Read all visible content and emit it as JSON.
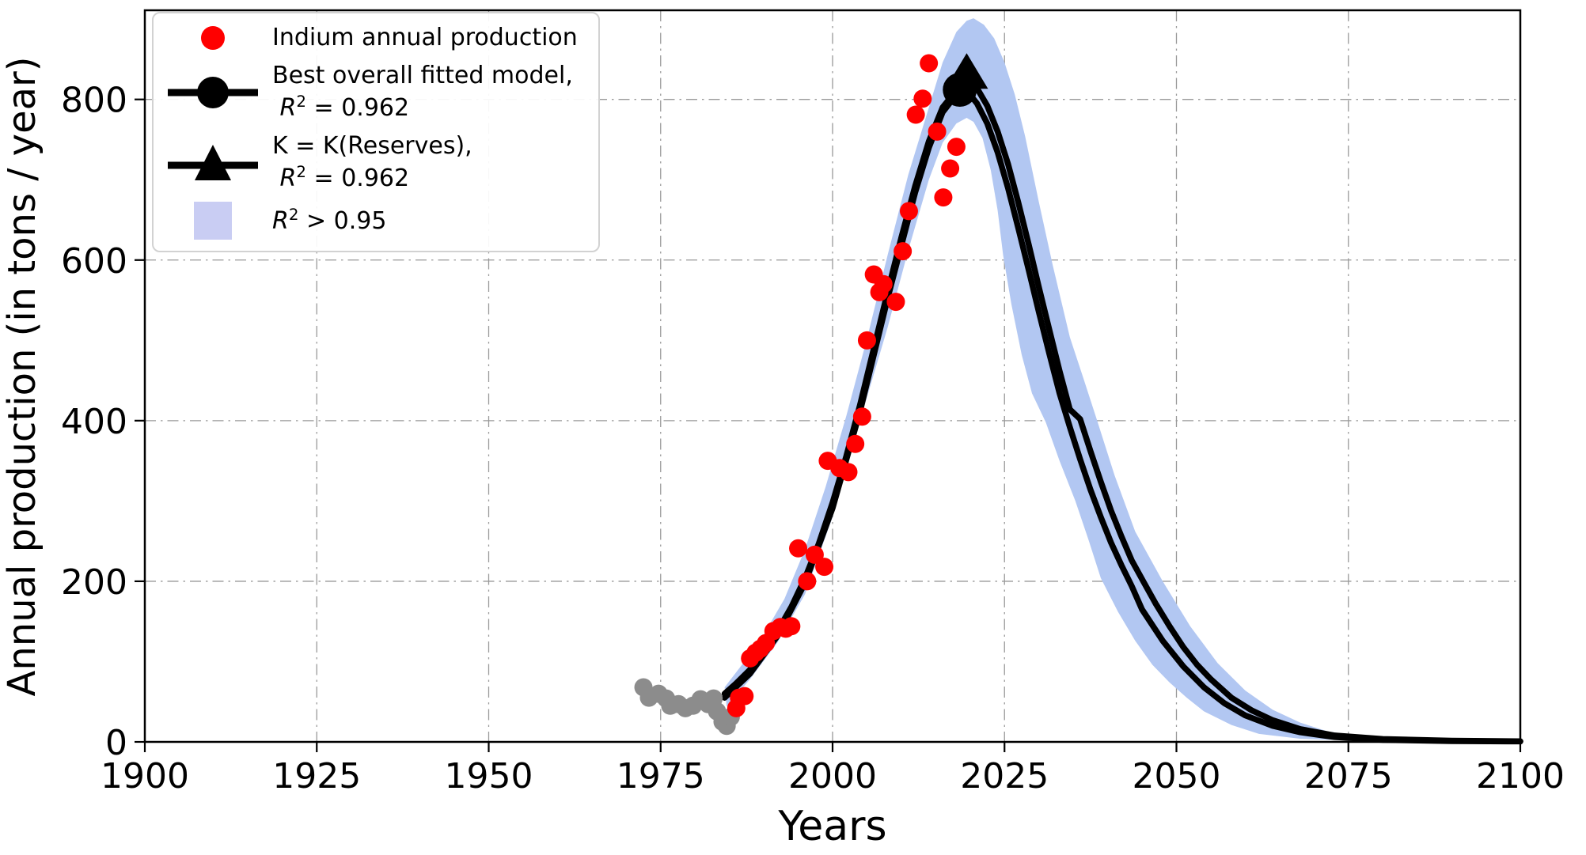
{
  "chart_data": {
    "type": "scatter+line",
    "title": "",
    "xlabel": "Years",
    "ylabel": "Annual production (in tons / year)",
    "xlim": [
      1900,
      2100
    ],
    "ylim": [
      0,
      911
    ],
    "xticks": [
      1900,
      1925,
      1950,
      1975,
      2000,
      2025,
      2050,
      2075,
      2100
    ],
    "yticks": [
      0,
      200,
      400,
      600,
      800
    ],
    "grid": "dash-dot, both axes",
    "legend_position": "upper left",
    "colors": {
      "scatter_red": "#ff0000",
      "scatter_gray": "#8c8c8c",
      "curve_black": "#000000",
      "band_fill": "#b2c7f2",
      "legend_patch": "#c9cdf3",
      "grid_gray": "#999999"
    },
    "legend": [
      {
        "marker": "dot",
        "color": "#ff0000",
        "lines": [
          "Indium annual production"
        ]
      },
      {
        "marker": "line-circle",
        "color": "#000000",
        "lines": [
          "Best overall fitted model,",
          " R² = 0.962"
        ]
      },
      {
        "marker": "line-triangle",
        "color": "#000000",
        "lines": [
          "K = K(Reserves),",
          " R² = 0.962"
        ]
      },
      {
        "marker": "patch",
        "color": "#c9cdf3",
        "lines": [
          "R² > 0.95"
        ]
      }
    ],
    "series": [
      {
        "name": "indium-production-unfitted-gray",
        "kind": "scatter",
        "color": "#8c8c8c",
        "points": [
          [
            1972.5,
            68
          ],
          [
            1973.3,
            55
          ],
          [
            1974.7,
            60
          ],
          [
            1975.8,
            54
          ],
          [
            1976.4,
            45
          ],
          [
            1977.6,
            47
          ],
          [
            1978.6,
            42
          ],
          [
            1979.7,
            45
          ],
          [
            1980.8,
            53
          ],
          [
            1981.9,
            47
          ],
          [
            1982.7,
            54
          ],
          [
            1983.2,
            38
          ],
          [
            1984.0,
            25
          ],
          [
            1984.6,
            20
          ],
          [
            1985.2,
            31
          ]
        ]
      },
      {
        "name": "indium-annual-production",
        "kind": "scatter",
        "color": "#ff0000",
        "points": [
          [
            1986.0,
            42
          ],
          [
            1986.4,
            55
          ],
          [
            1987.2,
            57
          ],
          [
            1988.0,
            104
          ],
          [
            1988.8,
            111
          ],
          [
            1989.5,
            116
          ],
          [
            1990.3,
            123
          ],
          [
            1991.4,
            138
          ],
          [
            1992.4,
            143
          ],
          [
            1993.2,
            141
          ],
          [
            1994.0,
            144
          ],
          [
            1995.0,
            241
          ],
          [
            1996.3,
            200
          ],
          [
            1997.4,
            233
          ],
          [
            1998.8,
            218
          ],
          [
            1999.3,
            350
          ],
          [
            2001.0,
            341
          ],
          [
            2002.3,
            336
          ],
          [
            2003.3,
            371
          ],
          [
            2004.3,
            405
          ],
          [
            2005.0,
            500
          ],
          [
            2006.0,
            582
          ],
          [
            2006.8,
            560
          ],
          [
            2007.4,
            570
          ],
          [
            2009.2,
            548
          ],
          [
            2010.2,
            611
          ],
          [
            2011.1,
            661
          ],
          [
            2012.1,
            781
          ],
          [
            2013.1,
            801
          ],
          [
            2014.0,
            845
          ],
          [
            2015.2,
            760
          ],
          [
            2016.1,
            678
          ],
          [
            2017.1,
            714
          ],
          [
            2018.0,
            741
          ]
        ]
      },
      {
        "name": "best-overall-fitted-model",
        "kind": "line",
        "color": "#000000",
        "r_squared": 0.962,
        "points": [
          [
            1984.3,
            60
          ],
          [
            1986,
            73
          ],
          [
            1988,
            90
          ],
          [
            1990,
            112
          ],
          [
            1992,
            138
          ],
          [
            1994,
            168
          ],
          [
            1996,
            204
          ],
          [
            1998,
            247
          ],
          [
            2000,
            298
          ],
          [
            2002,
            356
          ],
          [
            2004,
            420
          ],
          [
            2006,
            490
          ],
          [
            2008,
            560
          ],
          [
            2010,
            628
          ],
          [
            2012,
            692
          ],
          [
            2014,
            748
          ],
          [
            2016,
            790
          ],
          [
            2017.5,
            806
          ],
          [
            2018.6,
            813
          ],
          [
            2019.5,
            811
          ],
          [
            2021,
            795
          ],
          [
            2022.5,
            770
          ],
          [
            2024,
            734
          ],
          [
            2025.5,
            690
          ],
          [
            2027,
            640
          ],
          [
            2028.5,
            588
          ],
          [
            2030,
            535
          ],
          [
            2031.5,
            484
          ],
          [
            2033,
            434
          ],
          [
            2034.5,
            392
          ],
          [
            2036,
            352
          ],
          [
            2037.5,
            314
          ],
          [
            2039,
            280
          ],
          [
            2040.5,
            248
          ],
          [
            2042,
            220
          ],
          [
            2043.5,
            194
          ],
          [
            2045,
            165
          ],
          [
            2048,
            126
          ],
          [
            2051,
            94
          ],
          [
            2054,
            68
          ],
          [
            2057,
            48
          ],
          [
            2060,
            33
          ],
          [
            2064,
            20
          ],
          [
            2068,
            12
          ],
          [
            2073,
            6
          ],
          [
            2080,
            2.5
          ],
          [
            2090,
            1
          ],
          [
            2100,
            0.6
          ]
        ]
      },
      {
        "name": "k-equals-k-reserves-model",
        "kind": "line",
        "color": "#000000",
        "r_squared": 0.962,
        "points": [
          [
            1984.3,
            55
          ],
          [
            1988,
            85
          ],
          [
            1992,
            132
          ],
          [
            1996,
            198
          ],
          [
            2000,
            291
          ],
          [
            2004,
            412
          ],
          [
            2008,
            552
          ],
          [
            2012,
            684
          ],
          [
            2014,
            740
          ],
          [
            2016,
            784
          ],
          [
            2018,
            806
          ],
          [
            2019,
            818
          ],
          [
            2019.8,
            824
          ],
          [
            2021,
            814
          ],
          [
            2022.5,
            792
          ],
          [
            2024,
            760
          ],
          [
            2025.5,
            720
          ],
          [
            2027,
            672
          ],
          [
            2028.5,
            620
          ],
          [
            2030,
            566
          ],
          [
            2031.5,
            514
          ],
          [
            2033,
            462
          ],
          [
            2034.5,
            414
          ],
          [
            2036,
            402
          ],
          [
            2037.5,
            362
          ],
          [
            2039,
            324
          ],
          [
            2040.5,
            288
          ],
          [
            2042,
            256
          ],
          [
            2043.5,
            226
          ],
          [
            2045.3,
            198
          ],
          [
            2047,
            172
          ],
          [
            2049,
            144
          ],
          [
            2051,
            118
          ],
          [
            2053,
            96
          ],
          [
            2055,
            78
          ],
          [
            2058,
            55
          ],
          [
            2061,
            39
          ],
          [
            2064,
            27
          ],
          [
            2068,
            16
          ],
          [
            2073,
            8
          ],
          [
            2080,
            3.5
          ],
          [
            2090,
            1.5
          ],
          [
            2100,
            0.8
          ]
        ]
      }
    ],
    "band": {
      "name": "r-squared-above-0.95-band",
      "fill": "#b2c7f2",
      "outer": [
        [
          1984.3,
          68
        ],
        [
          1987,
          98
        ],
        [
          1990,
          134
        ],
        [
          1993,
          178
        ],
        [
          1996,
          240
        ],
        [
          1999,
          318
        ],
        [
          2002,
          406
        ],
        [
          2005,
          502
        ],
        [
          2008,
          606
        ],
        [
          2011,
          706
        ],
        [
          2014,
          790
        ],
        [
          2016,
          846
        ],
        [
          2018,
          884
        ],
        [
          2019.5,
          898
        ],
        [
          2020.5,
          901
        ],
        [
          2022,
          893
        ],
        [
          2023.5,
          876
        ],
        [
          2025,
          846
        ],
        [
          2026.5,
          806
        ],
        [
          2028,
          754
        ],
        [
          2030,
          672
        ],
        [
          2032,
          594
        ],
        [
          2034.5,
          504
        ],
        [
          2036.5,
          452
        ],
        [
          2038.4,
          402
        ],
        [
          2041,
          332
        ],
        [
          2044,
          262
        ],
        [
          2048,
          200
        ],
        [
          2052,
          144
        ],
        [
          2056,
          98
        ],
        [
          2060,
          64
        ],
        [
          2064,
          40
        ],
        [
          2068,
          24
        ],
        [
          2072,
          13
        ],
        [
          2078,
          5.5
        ],
        [
          2086,
          2
        ],
        [
          2100,
          0.8
        ]
      ],
      "inner": [
        [
          1984.6,
          44
        ],
        [
          1988,
          78
        ],
        [
          1992,
          124
        ],
        [
          1996,
          184
        ],
        [
          2000,
          280
        ],
        [
          2004,
          400
        ],
        [
          2008,
          516
        ],
        [
          2011,
          612
        ],
        [
          2014,
          700
        ],
        [
          2016,
          746
        ],
        [
          2018,
          770
        ],
        [
          2019.5,
          777
        ],
        [
          2020.5,
          772
        ],
        [
          2021.8,
          752
        ],
        [
          2023,
          712
        ],
        [
          2024,
          662
        ],
        [
          2024.8,
          606
        ],
        [
          2026,
          545
        ],
        [
          2027.5,
          482
        ],
        [
          2029,
          434
        ],
        [
          2031,
          398
        ],
        [
          2033,
          350
        ],
        [
          2035.3,
          300
        ],
        [
          2037.2,
          252
        ],
        [
          2039,
          204
        ],
        [
          2041.5,
          162
        ],
        [
          2044,
          126
        ],
        [
          2046.5,
          96
        ],
        [
          2049,
          74
        ],
        [
          2051.5,
          55
        ],
        [
          2054,
          38
        ],
        [
          2058,
          21
        ],
        [
          2062,
          10
        ],
        [
          2068,
          4
        ],
        [
          2076,
          1.5
        ],
        [
          2100,
          0.4
        ]
      ]
    },
    "peak_markers": {
      "circle": {
        "x": 2018.5,
        "y": 812,
        "series": "best-overall-fitted-model"
      },
      "triangle": {
        "x": 2019.5,
        "y": 830,
        "series": "k-equals-k-reserves-model"
      }
    }
  }
}
